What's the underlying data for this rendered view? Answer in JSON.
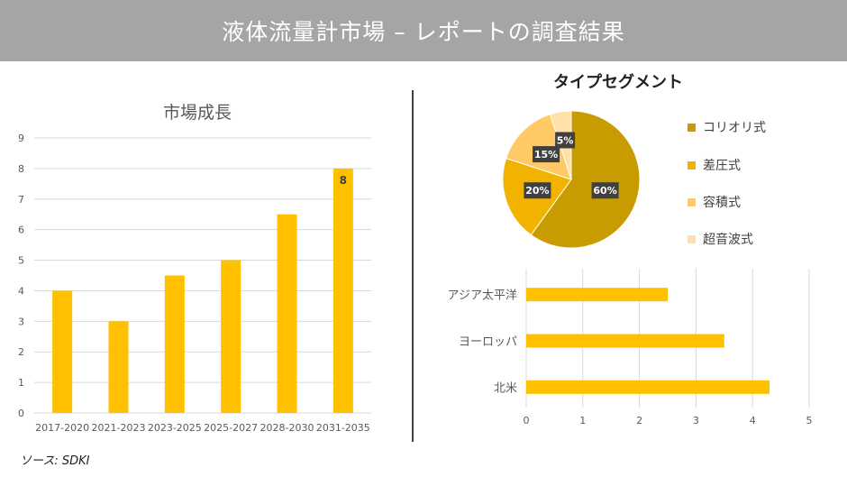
{
  "header": {
    "title": "液体流量計市場 – レポートの調査結果"
  },
  "source": "ソース: SDKI",
  "colors": {
    "bar": "#FFC000",
    "grid": "#d9d9d9",
    "header_bg": "#a5a5a5"
  },
  "chart_data": [
    {
      "type": "bar",
      "title": "市場成長",
      "categories": [
        "2017-2020",
        "2021-2023",
        "2023-2025",
        "2025-2027",
        "2028-2030",
        "2031-2035"
      ],
      "values": [
        4,
        3,
        4.5,
        5,
        6.5,
        8
      ],
      "data_labels": {
        "2031-2035": "8"
      },
      "ylim": [
        0,
        9
      ],
      "yticks": [
        "0",
        "1",
        "2",
        "3",
        "4",
        "5",
        "6",
        "7",
        "8",
        "9"
      ],
      "grid": true
    },
    {
      "type": "pie",
      "title": "タイプセグメント",
      "labels": [
        "コリオリ式",
        "差圧式",
        "容積式",
        "超音波式"
      ],
      "values": [
        60,
        20,
        15,
        5
      ],
      "value_labels": [
        "60%",
        "20%",
        "15%",
        "5%"
      ],
      "colors": [
        "#C89B00",
        "#F2B200",
        "#FFC966",
        "#FFE0A8"
      ],
      "legend_position": "right"
    },
    {
      "type": "bar",
      "orientation": "horizontal",
      "categories": [
        "アジア太平洋",
        "ヨーロッパ",
        "北米"
      ],
      "values": [
        2.5,
        3.5,
        4.3
      ],
      "xlim": [
        0,
        5
      ],
      "xticks": [
        "0",
        "1",
        "2",
        "3",
        "4",
        "5"
      ],
      "grid": true
    }
  ]
}
